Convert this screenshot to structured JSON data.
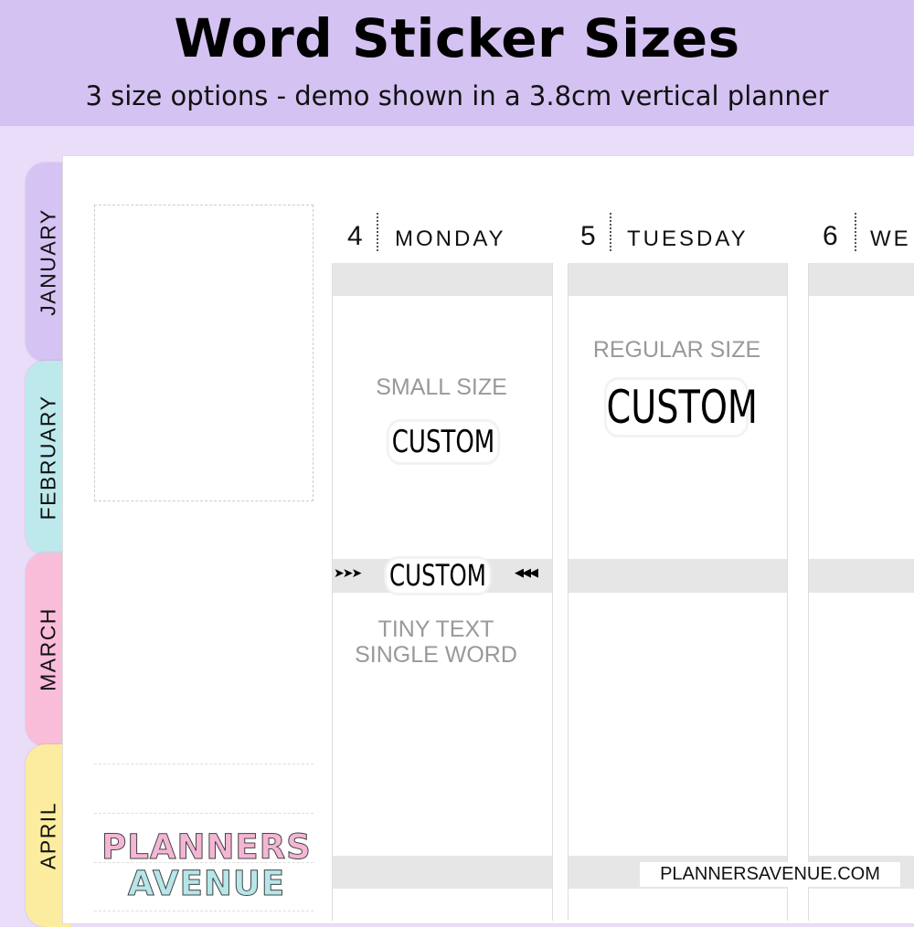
{
  "header": {
    "title": "Word Sticker Sizes",
    "subtitle": "3 size options - demo shown in a 3.8cm vertical planner"
  },
  "tabs": [
    {
      "label": "JANUARY",
      "color": "#d5c3f3"
    },
    {
      "label": "FEBRUARY",
      "color": "#bde9ec"
    },
    {
      "label": "MARCH",
      "color": "#f9bcd9"
    },
    {
      "label": "APRIL",
      "color": "#fcec9f"
    }
  ],
  "days": [
    {
      "num": "4",
      "name": "MONDAY"
    },
    {
      "num": "5",
      "name": "TUESDAY"
    },
    {
      "num": "6",
      "name": "WE"
    }
  ],
  "samples": {
    "small_label": "SMALL SIZE",
    "small_word": "CUSTOM",
    "regular_label": "REGULAR SIZE",
    "regular_word": "CUSTOM",
    "tiny_word": "CUSTOM",
    "tiny_left": "➤➤➤",
    "tiny_right": "◀◀◀",
    "tiny_label_1": "TINY TEXT",
    "tiny_label_2": "SINGLE WORD"
  },
  "logo": {
    "line1": "PLANNERS",
    "line2": "AVENUE"
  },
  "footer": {
    "url": "PLANNERSAVENUE.COM"
  }
}
